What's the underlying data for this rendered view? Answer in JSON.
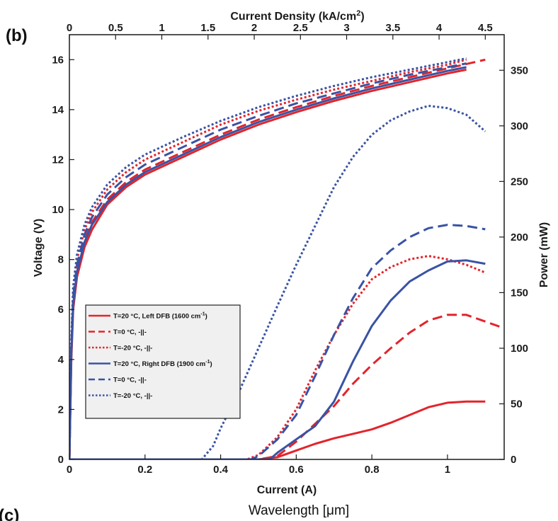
{
  "panel_label": "(b)",
  "next_panel_label": "(c)",
  "next_panel_caption": "Wavelength [μm]",
  "chart_data": {
    "type": "line",
    "xlabel": "Current (A)",
    "x_ticks": [
      "0",
      "0.2",
      "0.4",
      "0.6",
      "0.8",
      "1"
    ],
    "xlim": [
      0,
      1.15
    ],
    "ylabel_left": "Voltage (V)",
    "ylim_left": [
      0,
      17
    ],
    "y_left_ticks": [
      "0",
      "2",
      "4",
      "6",
      "8",
      "10",
      "12",
      "14",
      "16"
    ],
    "ylabel_right": "Power (mW)",
    "ylim_right": [
      0,
      382
    ],
    "y_right_ticks": [
      "0",
      "50",
      "100",
      "150",
      "200",
      "250",
      "300",
      "350"
    ],
    "top_axis_label": "Current Density (kA/cm",
    "top_axis_label_sup": "2",
    "top_axis_label_end": ")",
    "top_ticks": [
      "0",
      "0.5",
      "1",
      "1.5",
      "2",
      "2.5",
      "3",
      "3.5",
      "4",
      "4.5"
    ],
    "top_ticks_current": [
      0,
      0.1222,
      0.2444,
      0.3667,
      0.4889,
      0.6111,
      0.7333,
      0.8556,
      0.9778,
      1.1
    ],
    "legend_position": "lower-left",
    "grid": false,
    "colors": {
      "red": "#e3242b",
      "blue": "#3953a4"
    },
    "legend": [
      {
        "text": "T=20 °C, Left DFB (1600 cm",
        "sup": "-1",
        "end": ")",
        "color": "#e3242b",
        "dash": "solid"
      },
      {
        "text": "T=0 °C,  -||-",
        "color": "#e3242b",
        "dash": "dashed"
      },
      {
        "text": "T=-20 °C,  -||-",
        "color": "#e3242b",
        "dash": "dotted"
      },
      {
        "text": "T=20 °C, Right DFB (1900 cm",
        "sup": "-1",
        "end": ")",
        "color": "#3953a4",
        "dash": "solid"
      },
      {
        "text": "T=0 °C,  -||-",
        "color": "#3953a4",
        "dash": "dashed"
      },
      {
        "text": "T=-20 °C,  -||-",
        "color": "#3953a4",
        "dash": "dotted"
      }
    ],
    "series": [
      {
        "axis": "left",
        "color": "#e3242b",
        "dash": "solid",
        "x": [
          0,
          0.005,
          0.01,
          0.02,
          0.04,
          0.06,
          0.1,
          0.15,
          0.2,
          0.3,
          0.4,
          0.5,
          0.6,
          0.7,
          0.8,
          0.9,
          1.0,
          1.05
        ],
        "y": [
          0,
          4.0,
          6.0,
          7.3,
          8.5,
          9.2,
          10.2,
          10.9,
          11.4,
          12.1,
          12.8,
          13.4,
          13.9,
          14.35,
          14.75,
          15.1,
          15.45,
          15.6
        ]
      },
      {
        "axis": "left",
        "color": "#e3242b",
        "dash": "dashed",
        "x": [
          0,
          0.005,
          0.01,
          0.02,
          0.04,
          0.06,
          0.1,
          0.15,
          0.2,
          0.3,
          0.4,
          0.5,
          0.6,
          0.7,
          0.8,
          0.9,
          1.0,
          1.1
        ],
        "y": [
          0,
          4.4,
          6.4,
          7.6,
          8.8,
          9.5,
          10.4,
          11.1,
          11.6,
          12.3,
          13.0,
          13.6,
          14.1,
          14.55,
          14.95,
          15.3,
          15.65,
          16.0
        ]
      },
      {
        "axis": "left",
        "color": "#e3242b",
        "dash": "dotted",
        "x": [
          0,
          0.005,
          0.01,
          0.02,
          0.04,
          0.06,
          0.1,
          0.15,
          0.2,
          0.3,
          0.4,
          0.5,
          0.6,
          0.7,
          0.8,
          0.9,
          1.0,
          1.05
        ],
        "y": [
          0,
          4.6,
          6.7,
          8.0,
          9.2,
          9.9,
          10.8,
          11.5,
          12.0,
          12.7,
          13.4,
          13.95,
          14.4,
          14.8,
          15.15,
          15.5,
          15.8,
          16.0
        ]
      },
      {
        "axis": "left",
        "color": "#3953a4",
        "dash": "solid",
        "x": [
          0,
          0.005,
          0.01,
          0.02,
          0.04,
          0.06,
          0.1,
          0.15,
          0.2,
          0.3,
          0.4,
          0.5,
          0.6,
          0.7,
          0.8,
          0.9,
          1.0,
          1.05
        ],
        "y": [
          0,
          4.2,
          6.2,
          7.5,
          8.7,
          9.4,
          10.3,
          11.0,
          11.5,
          12.2,
          12.9,
          13.5,
          14.0,
          14.45,
          14.85,
          15.2,
          15.55,
          15.7
        ]
      },
      {
        "axis": "left",
        "color": "#3953a4",
        "dash": "dashed",
        "x": [
          0,
          0.005,
          0.01,
          0.02,
          0.04,
          0.06,
          0.1,
          0.15,
          0.2,
          0.3,
          0.4,
          0.5,
          0.6,
          0.7,
          0.8,
          0.9,
          1.0,
          1.05
        ],
        "y": [
          0,
          4.5,
          6.5,
          7.8,
          9.0,
          9.7,
          10.6,
          11.3,
          11.8,
          12.5,
          13.2,
          13.75,
          14.25,
          14.65,
          15.05,
          15.4,
          15.7,
          15.85
        ]
      },
      {
        "axis": "left",
        "color": "#3953a4",
        "dash": "dotted",
        "x": [
          0,
          0.005,
          0.01,
          0.02,
          0.04,
          0.06,
          0.1,
          0.15,
          0.2,
          0.3,
          0.4,
          0.5,
          0.6,
          0.7,
          0.8,
          0.9,
          1.0,
          1.05
        ],
        "y": [
          0,
          4.8,
          6.9,
          8.2,
          9.4,
          10.1,
          11.0,
          11.7,
          12.2,
          12.9,
          13.55,
          14.1,
          14.55,
          14.95,
          15.3,
          15.6,
          15.9,
          16.05
        ]
      },
      {
        "axis": "right",
        "color": "#e3242b",
        "dash": "solid",
        "x": [
          0,
          0.5,
          0.55,
          0.6,
          0.65,
          0.7,
          0.75,
          0.8,
          0.85,
          0.9,
          0.95,
          1.0,
          1.05,
          1.1
        ],
        "y": [
          0,
          0,
          2,
          8,
          14,
          19,
          23,
          27,
          33,
          40,
          47,
          51,
          52,
          52
        ]
      },
      {
        "axis": "right",
        "color": "#e3242b",
        "dash": "dashed",
        "x": [
          0,
          0.5,
          0.55,
          0.6,
          0.65,
          0.7,
          0.75,
          0.8,
          0.85,
          0.9,
          0.95,
          1.0,
          1.05,
          1.1,
          1.15
        ],
        "y": [
          0,
          0,
          3,
          16,
          32,
          48,
          68,
          85,
          100,
          114,
          125,
          130,
          130,
          124,
          118
        ]
      },
      {
        "axis": "right",
        "color": "#e3242b",
        "dash": "dotted",
        "x": [
          0,
          0.47,
          0.5,
          0.55,
          0.6,
          0.65,
          0.7,
          0.75,
          0.8,
          0.85,
          0.9,
          0.95,
          1.0,
          1.05,
          1.1
        ],
        "y": [
          0,
          0,
          4,
          20,
          45,
          80,
          112,
          140,
          162,
          173,
          180,
          183,
          180,
          175,
          168
        ]
      },
      {
        "axis": "right",
        "color": "#3953a4",
        "dash": "solid",
        "x": [
          0,
          0.53,
          0.55,
          0.6,
          0.65,
          0.7,
          0.75,
          0.8,
          0.85,
          0.9,
          0.95,
          1.0,
          1.05,
          1.1
        ],
        "y": [
          0,
          0,
          6,
          18,
          30,
          52,
          88,
          120,
          143,
          160,
          170,
          178,
          179,
          176
        ]
      },
      {
        "axis": "right",
        "color": "#3953a4",
        "dash": "dashed",
        "x": [
          0,
          0.48,
          0.5,
          0.55,
          0.6,
          0.65,
          0.7,
          0.75,
          0.8,
          0.85,
          0.9,
          0.95,
          1.0,
          1.05,
          1.1
        ],
        "y": [
          0,
          0,
          3,
          18,
          40,
          75,
          112,
          145,
          172,
          188,
          200,
          208,
          211,
          210,
          207
        ]
      },
      {
        "axis": "right",
        "color": "#3953a4",
        "dash": "dotted",
        "x": [
          0,
          0.35,
          0.38,
          0.4,
          0.45,
          0.5,
          0.55,
          0.6,
          0.65,
          0.7,
          0.75,
          0.8,
          0.85,
          0.9,
          0.95,
          1.0,
          1.05,
          1.1
        ],
        "y": [
          0,
          0,
          12,
          28,
          62,
          100,
          138,
          175,
          210,
          245,
          272,
          292,
          305,
          313,
          318,
          316,
          310,
          295
        ]
      }
    ]
  }
}
